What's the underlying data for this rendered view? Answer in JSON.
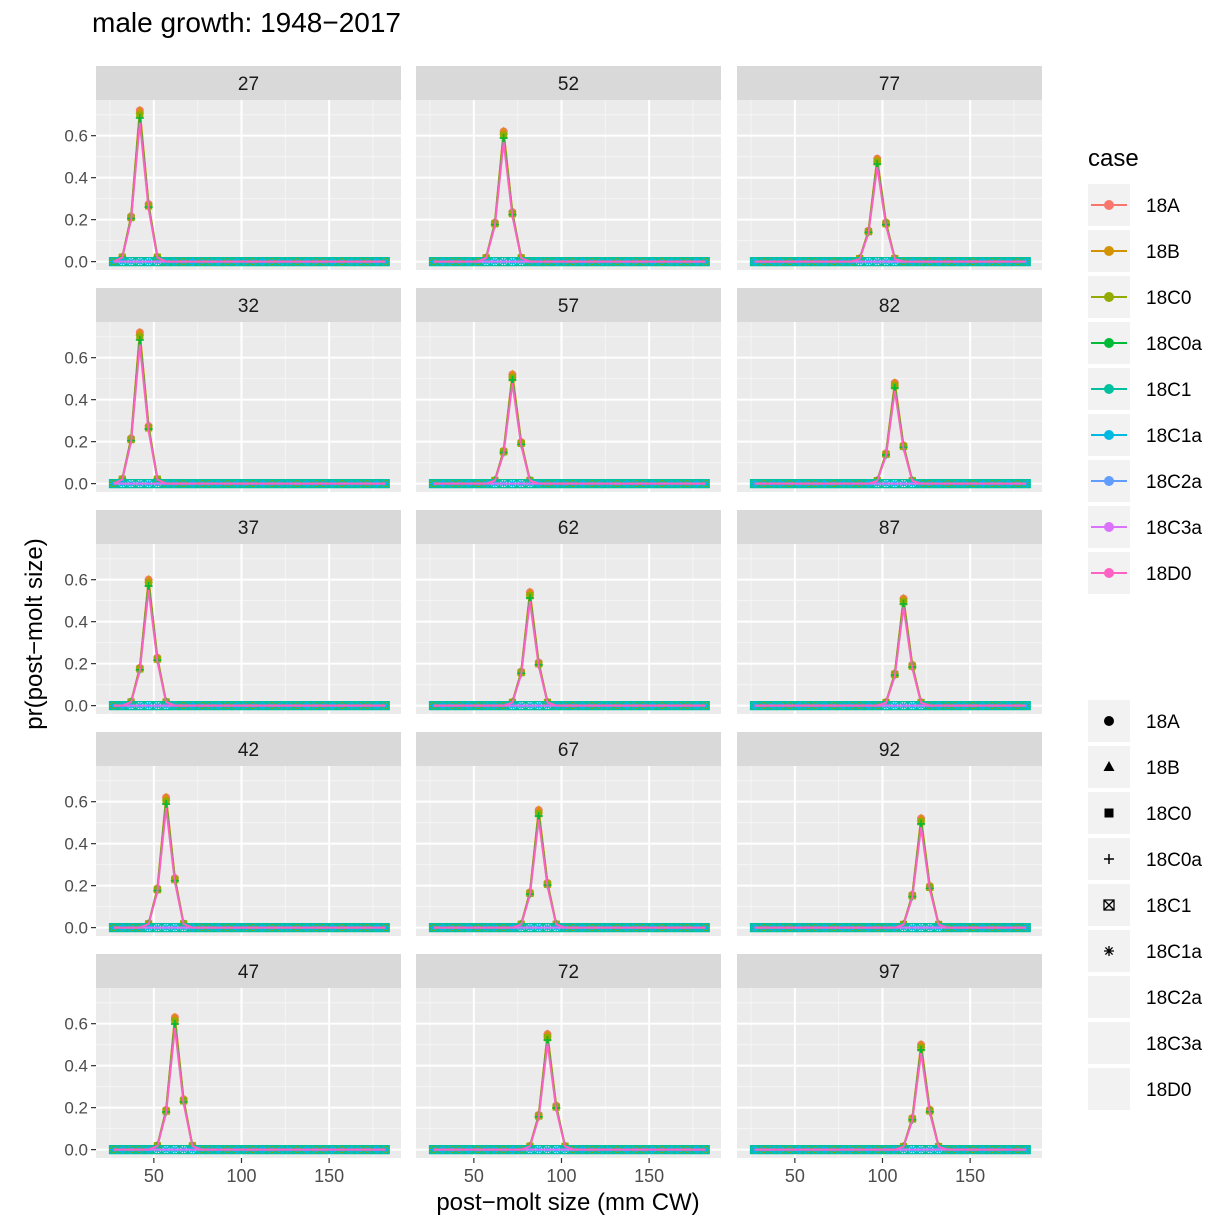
{
  "chart_data": {
    "type": "line",
    "title": "male growth: 1948−2017",
    "xlabel": "post−molt size (mm CW)",
    "ylabel": "pr(post−molt size)",
    "xlim": [
      17,
      191
    ],
    "ylim": [
      -0.04,
      0.77
    ],
    "x_ticks": [
      50,
      100,
      150
    ],
    "x_tick_labels": [
      "50",
      "100",
      "150"
    ],
    "y_ticks": [
      0,
      0.2,
      0.4,
      0.6
    ],
    "y_tick_labels": [
      "0.0",
      "0.2",
      "0.4",
      "0.6"
    ],
    "grid": true,
    "facet_layout": {
      "columns": 3,
      "rows": 5
    },
    "x_grid": [
      27,
      32,
      37,
      42,
      47,
      52,
      57,
      62,
      67,
      72,
      77,
      82,
      87,
      92,
      97,
      102,
      107,
      112,
      117,
      122,
      127,
      132,
      137,
      142,
      147,
      152,
      157,
      162,
      167,
      172,
      177,
      182
    ],
    "facets": [
      {
        "label": "27",
        "peak_x": 42,
        "peak_y": 0.72
      },
      {
        "label": "32",
        "peak_x": 42,
        "peak_y": 0.72
      },
      {
        "label": "37",
        "peak_x": 47,
        "peak_y": 0.6
      },
      {
        "label": "42",
        "peak_x": 57,
        "peak_y": 0.62
      },
      {
        "label": "47",
        "peak_x": 62,
        "peak_y": 0.63
      },
      {
        "label": "52",
        "peak_x": 67,
        "peak_y": 0.62
      },
      {
        "label": "57",
        "peak_x": 72,
        "peak_y": 0.52
      },
      {
        "label": "62",
        "peak_x": 82,
        "peak_y": 0.54
      },
      {
        "label": "67",
        "peak_x": 87,
        "peak_y": 0.56
      },
      {
        "label": "72",
        "peak_x": 92,
        "peak_y": 0.55
      },
      {
        "label": "77",
        "peak_x": 97,
        "peak_y": 0.49
      },
      {
        "label": "82",
        "peak_x": 107,
        "peak_y": 0.48
      },
      {
        "label": "87",
        "peak_x": 112,
        "peak_y": 0.51
      },
      {
        "label": "92",
        "peak_x": 122,
        "peak_y": 0.52
      },
      {
        "label": "97",
        "peak_x": 122,
        "peak_y": 0.5
      }
    ],
    "series": [
      {
        "name": "18A",
        "color": "#F8766D",
        "shape": "circle",
        "peak_scale": 1.0,
        "x_shift": 0
      },
      {
        "name": "18B",
        "color": "#D39200",
        "shape": "triangle",
        "peak_scale": 1.0,
        "x_shift": 0
      },
      {
        "name": "18C0",
        "color": "#93AA00",
        "shape": "square",
        "peak_scale": 0.97,
        "x_shift": 0
      },
      {
        "name": "18C0a",
        "color": "#00BA38",
        "shape": "plus",
        "peak_scale": 0.95,
        "x_shift": 0
      },
      {
        "name": "18C1",
        "color": "#00C19F",
        "shape": "boxx",
        "peak_scale": 0.8,
        "x_shift": 2
      },
      {
        "name": "18C1a",
        "color": "#00B9E3",
        "shape": "star",
        "peak_scale": 0.85,
        "x_shift": 1
      },
      {
        "name": "18C2a",
        "color": "#619CFF",
        "shape": "none",
        "peak_scale": 0.78,
        "x_shift": 2
      },
      {
        "name": "18C3a",
        "color": "#DB72FB",
        "shape": "none",
        "peak_scale": 0.78,
        "x_shift": 2
      },
      {
        "name": "18D0",
        "color": "#FF61C3",
        "shape": "none",
        "peak_scale": 0.92,
        "x_shift": 0
      }
    ]
  },
  "legend": {
    "color_title": "case",
    "shape_title": ""
  }
}
